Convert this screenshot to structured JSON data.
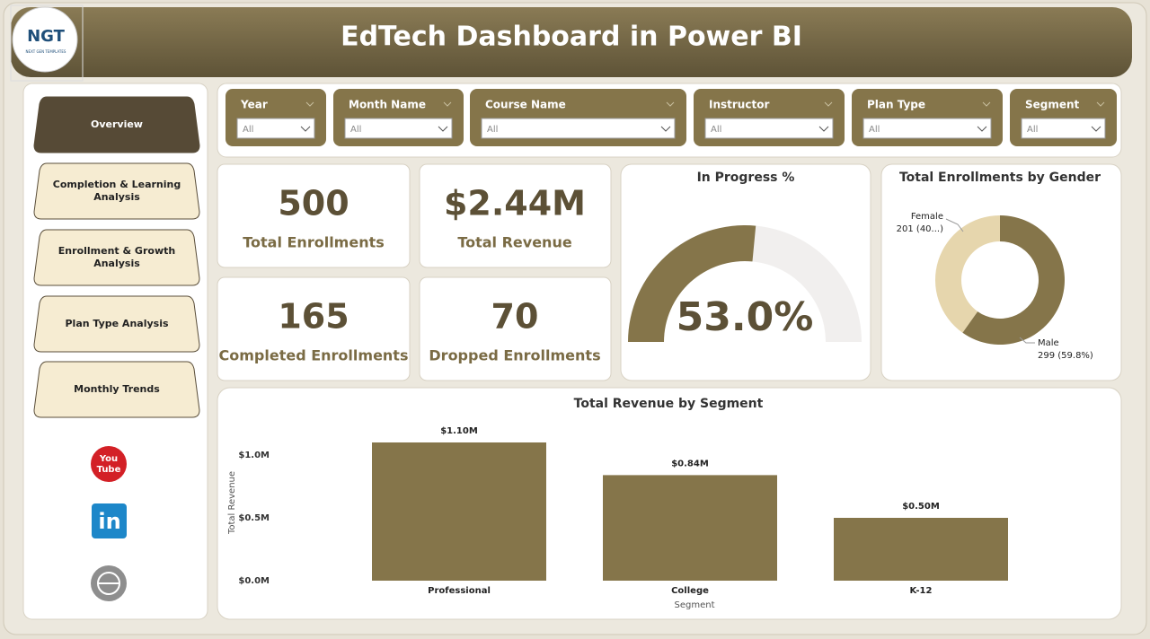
{
  "header": {
    "title": "EdTech Dashboard in Power BI"
  },
  "logo": {
    "text": "NGT",
    "tagline": "NEXT GEN TEMPLATES"
  },
  "nav": [
    "Overview",
    "Completion & Learning Analysis",
    "Enrollment & Growth Analysis",
    "Plan Type Analysis",
    "Monthly Trends"
  ],
  "social": {
    "youtube": [
      "You",
      "Tube"
    ],
    "linkedin": "in"
  },
  "filters": [
    {
      "label": "Year",
      "value": "All"
    },
    {
      "label": "Month Name",
      "value": "All"
    },
    {
      "label": "Course Name",
      "value": "All"
    },
    {
      "label": "Instructor",
      "value": "All"
    },
    {
      "label": "Plan Type",
      "value": "All"
    },
    {
      "label": "Segment",
      "value": "All"
    }
  ],
  "kpis": [
    {
      "value": "500",
      "label": "Total Enrollments"
    },
    {
      "value": "$2.44M",
      "label": "Total Revenue"
    },
    {
      "value": "165",
      "label": "Completed Enrollments"
    },
    {
      "value": "70",
      "label": "Dropped Enrollments"
    }
  ],
  "chart_data": [
    {
      "type": "gauge",
      "title": "In Progress %",
      "value": 53,
      "value_label": "53.0%",
      "ylim": [
        0,
        100
      ],
      "color": "#85754a",
      "track_color": "#f1efee"
    },
    {
      "type": "pie",
      "title": "Total Enrollments by Gender",
      "categories": [
        "Female",
        "Male"
      ],
      "values": [
        201,
        299
      ],
      "value_labels": [
        "201 (40...)",
        "299 (59.8%)"
      ],
      "colors": [
        "#e6d6ad",
        "#85754a"
      ]
    },
    {
      "type": "bar",
      "title": "Total Revenue by Segment",
      "categories": [
        "Professional",
        "College",
        "K-12"
      ],
      "values": [
        1100000,
        840000,
        500000
      ],
      "value_labels": [
        "$1.10M",
        "$0.84M",
        "$0.50M"
      ],
      "ylim": [
        0,
        1200000
      ],
      "yticks": [
        {
          "value": 0,
          "label": "$0.0M"
        },
        {
          "value": 500000,
          "label": "$0.5M"
        },
        {
          "value": 1000000,
          "label": "$1.0M"
        }
      ],
      "xlabel": "Segment",
      "ylabel": "Total Revenue",
      "color": "#85754a",
      "grid": false
    }
  ]
}
